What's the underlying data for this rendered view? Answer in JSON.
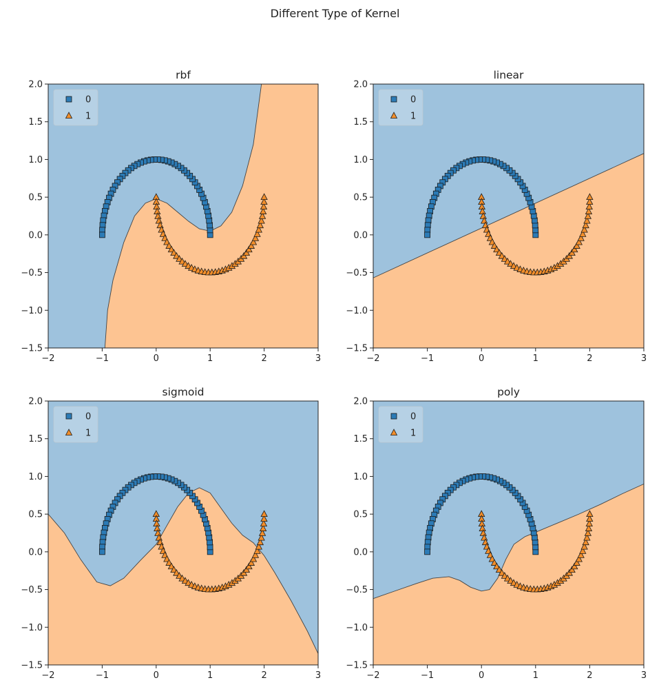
{
  "suptitle": "Different Type of Kernel",
  "colors": {
    "class0_region": "#9ec2dd",
    "class1_region": "#fdc492",
    "class0_marker": "#2c7bb6",
    "class1_marker": "#f28e2b",
    "boundary": "#444444"
  },
  "legend": {
    "placement": "top-left",
    "entries": [
      {
        "label": "0",
        "marker": "square",
        "color": "#2c7bb6"
      },
      {
        "label": "1",
        "marker": "triangle",
        "color": "#f28e2b"
      }
    ]
  },
  "chart_data": [
    {
      "type": "scatter",
      "title": "rbf",
      "xlim": [
        -2,
        3
      ],
      "ylim": [
        -1.5,
        2.0
      ],
      "xticks": [
        -2,
        -1,
        0,
        1,
        2,
        3
      ],
      "xtick_labels": [
        "−2",
        "−1",
        "0",
        "1",
        "2",
        "3"
      ],
      "yticks": [
        -1.5,
        -1.0,
        -0.5,
        0.0,
        0.5,
        1.0,
        1.5,
        2.0
      ],
      "ytick_labels": [
        "−1.5",
        "−1.0",
        "−0.5",
        "0.0",
        "0.5",
        "1.0",
        "1.5",
        "2.0"
      ],
      "boundary_class0_side": "left",
      "boundary": [
        [
          -0.95,
          -1.5
        ],
        [
          -0.9,
          -1.0
        ],
        [
          -0.8,
          -0.6
        ],
        [
          -0.6,
          -0.1
        ],
        [
          -0.4,
          0.25
        ],
        [
          -0.2,
          0.42
        ],
        [
          0.0,
          0.48
        ],
        [
          0.2,
          0.42
        ],
        [
          0.4,
          0.3
        ],
        [
          0.6,
          0.18
        ],
        [
          0.8,
          0.08
        ],
        [
          1.0,
          0.05
        ],
        [
          1.2,
          0.12
        ],
        [
          1.4,
          0.3
        ],
        [
          1.6,
          0.65
        ],
        [
          1.8,
          1.2
        ],
        [
          1.95,
          2.0
        ]
      ],
      "series": [
        {
          "name": "0",
          "n_points": 50,
          "center": [
            0,
            0
          ],
          "radius": 1,
          "arc": "upper"
        },
        {
          "name": "1",
          "n_points": 50,
          "center": [
            1,
            0.5
          ],
          "radius": 1,
          "arc": "lower"
        }
      ]
    },
    {
      "type": "scatter",
      "title": "linear",
      "xlim": [
        -2,
        3
      ],
      "ylim": [
        -1.5,
        2.0
      ],
      "xticks": [
        -2,
        -1,
        0,
        1,
        2,
        3
      ],
      "xtick_labels": [
        "−2",
        "−1",
        "0",
        "1",
        "2",
        "3"
      ],
      "yticks": [
        -1.5,
        -1.0,
        -0.5,
        0.0,
        0.5,
        1.0,
        1.5,
        2.0
      ],
      "ytick_labels": [
        "−1.5",
        "−1.0",
        "−0.5",
        "0.0",
        "0.5",
        "1.0",
        "1.5",
        "2.0"
      ],
      "boundary_class0_side": "above",
      "boundary": [
        [
          -2.0,
          -0.57
        ],
        [
          3.0,
          1.08
        ]
      ],
      "series": [
        {
          "name": "0",
          "n_points": 50,
          "center": [
            0,
            0
          ],
          "radius": 1,
          "arc": "upper"
        },
        {
          "name": "1",
          "n_points": 50,
          "center": [
            1,
            0.5
          ],
          "radius": 1,
          "arc": "lower"
        }
      ]
    },
    {
      "type": "scatter",
      "title": "sigmoid",
      "xlim": [
        -2,
        3
      ],
      "ylim": [
        -1.5,
        2.0
      ],
      "xticks": [
        -2,
        -1,
        0,
        1,
        2,
        3
      ],
      "xtick_labels": [
        "−2",
        "−1",
        "0",
        "1",
        "2",
        "3"
      ],
      "yticks": [
        -1.5,
        -1.0,
        -0.5,
        0.0,
        0.5,
        1.0,
        1.5,
        2.0
      ],
      "ytick_labels": [
        "−1.5",
        "−1.0",
        "−0.5",
        "0.0",
        "0.5",
        "1.0",
        "1.5",
        "2.0"
      ],
      "boundary_class0_side": "above",
      "boundary": [
        [
          -2.0,
          0.5
        ],
        [
          -1.7,
          0.25
        ],
        [
          -1.4,
          -0.1
        ],
        [
          -1.1,
          -0.4
        ],
        [
          -0.85,
          -0.45
        ],
        [
          -0.6,
          -0.35
        ],
        [
          -0.3,
          -0.12
        ],
        [
          0.0,
          0.1
        ],
        [
          0.2,
          0.35
        ],
        [
          0.4,
          0.6
        ],
        [
          0.6,
          0.78
        ],
        [
          0.8,
          0.85
        ],
        [
          1.0,
          0.78
        ],
        [
          1.2,
          0.58
        ],
        [
          1.4,
          0.38
        ],
        [
          1.6,
          0.22
        ],
        [
          1.8,
          0.12
        ],
        [
          2.0,
          -0.05
        ],
        [
          2.2,
          -0.28
        ],
        [
          2.5,
          -0.65
        ],
        [
          2.8,
          -1.05
        ],
        [
          3.0,
          -1.35
        ]
      ],
      "series": [
        {
          "name": "0",
          "n_points": 50,
          "center": [
            0,
            0
          ],
          "radius": 1,
          "arc": "upper"
        },
        {
          "name": "1",
          "n_points": 50,
          "center": [
            1,
            0.5
          ],
          "radius": 1,
          "arc": "lower"
        }
      ]
    },
    {
      "type": "scatter",
      "title": "poly",
      "xlim": [
        -2,
        3
      ],
      "ylim": [
        -1.5,
        2.0
      ],
      "xticks": [
        -2,
        -1,
        0,
        1,
        2,
        3
      ],
      "xtick_labels": [
        "−2",
        "−1",
        "0",
        "1",
        "2",
        "3"
      ],
      "yticks": [
        -1.5,
        -1.0,
        -0.5,
        0.0,
        0.5,
        1.0,
        1.5,
        2.0
      ],
      "ytick_labels": [
        "−1.5",
        "−1.0",
        "−0.5",
        "0.0",
        "0.5",
        "1.0",
        "1.5",
        "2.0"
      ],
      "boundary_class0_side": "above",
      "boundary": [
        [
          -2.0,
          -0.62
        ],
        [
          -1.6,
          -0.52
        ],
        [
          -1.2,
          -0.42
        ],
        [
          -0.9,
          -0.35
        ],
        [
          -0.6,
          -0.33
        ],
        [
          -0.4,
          -0.38
        ],
        [
          -0.2,
          -0.47
        ],
        [
          0.0,
          -0.52
        ],
        [
          0.15,
          -0.5
        ],
        [
          0.3,
          -0.35
        ],
        [
          0.45,
          -0.1
        ],
        [
          0.6,
          0.1
        ],
        [
          0.8,
          0.2
        ],
        [
          1.0,
          0.26
        ],
        [
          1.4,
          0.38
        ],
        [
          1.8,
          0.5
        ],
        [
          2.2,
          0.63
        ],
        [
          2.6,
          0.77
        ],
        [
          3.0,
          0.9
        ]
      ],
      "series": [
        {
          "name": "0",
          "n_points": 50,
          "center": [
            0,
            0
          ],
          "radius": 1,
          "arc": "upper"
        },
        {
          "name": "1",
          "n_points": 50,
          "center": [
            1,
            0.5
          ],
          "radius": 1,
          "arc": "lower"
        }
      ]
    }
  ]
}
